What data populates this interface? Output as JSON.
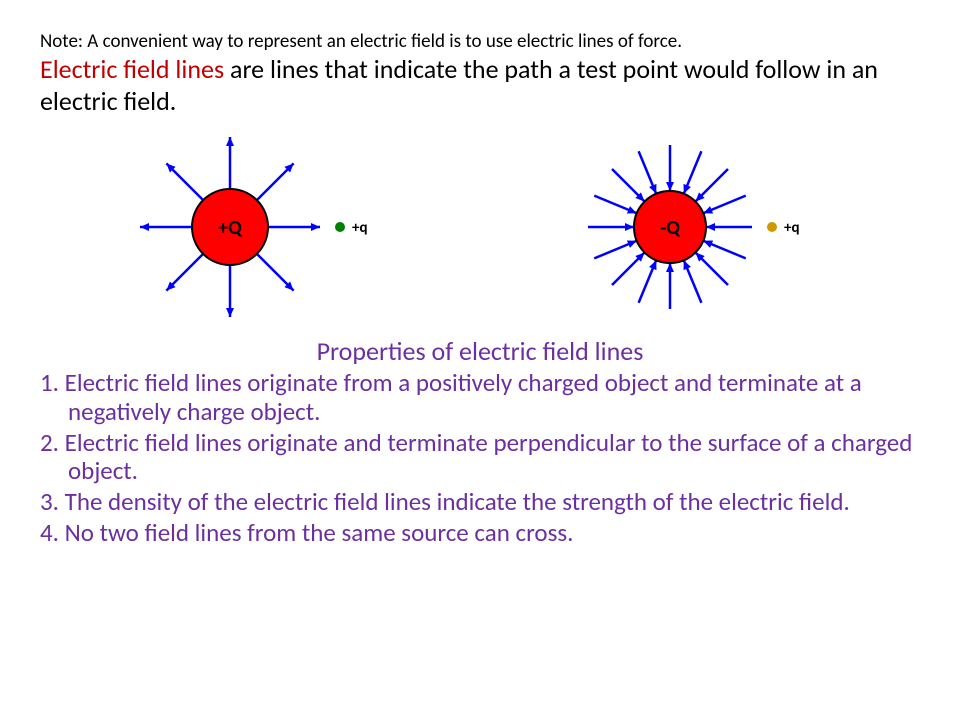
{
  "note": "Note:  A convenient way to represent an electric field is to use electric lines of force.",
  "definition": {
    "highlight": "Electric field lines",
    "rest": " are lines that indicate the path a test point would follow in an electric field."
  },
  "diagram": {
    "positive": {
      "charge_fill": "#ff0000",
      "charge_stroke": "#000000",
      "line_color": "#0000ff",
      "label": "+Q",
      "test_label": "+q",
      "test_color": "#008000",
      "direction": "out",
      "rays": 8,
      "radius": 38,
      "ray_len": 52
    },
    "negative": {
      "charge_fill": "#ff0000",
      "charge_stroke": "#000000",
      "line_color": "#0000ff",
      "label": "-Q",
      "test_label": "+q",
      "test_color": "#cc9900",
      "direction": "in",
      "rays": 16,
      "radius": 36,
      "ray_len": 46
    }
  },
  "subtitle": "Properties of electric field lines",
  "properties": [
    " 1. Electric field lines originate from a positively charged object and terminate at a negatively charge object.",
    "2.  Electric field lines originate and terminate  perpendicular to the surface of a charged object.",
    "3.  The density of the electric field lines indicate the strength of the electric field.",
    "4.  No two field lines from the same source can cross."
  ]
}
